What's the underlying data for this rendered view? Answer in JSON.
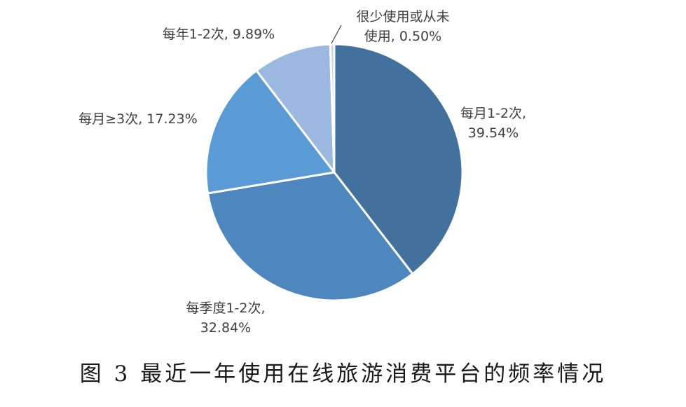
{
  "chart_data": {
    "type": "pie",
    "title": "图 3 最近一年使用在线旅游消费平台的频率情况",
    "categories": [
      "每月1-2次",
      "每季度1-2次",
      "每月≥3次",
      "每年1-2次",
      "很少使用或从未使用"
    ],
    "values": [
      39.54,
      32.84,
      17.23,
      9.89,
      0.5
    ],
    "colors": [
      "#41719c",
      "#4e87bd",
      "#5b9bd5",
      "#9ab8e0",
      "#c6d4ea"
    ],
    "labels": [
      [
        "每月1-2次,",
        "39.54%"
      ],
      [
        "每季度1-2次,",
        "32.84%"
      ],
      [
        "每月≥3次, 17.23%"
      ],
      [
        "每年1-2次, 9.89%"
      ],
      [
        "很少使用或从未",
        "使用, 0.50%"
      ]
    ],
    "start_angle": "12 o'clock",
    "direction": "clockwise"
  }
}
